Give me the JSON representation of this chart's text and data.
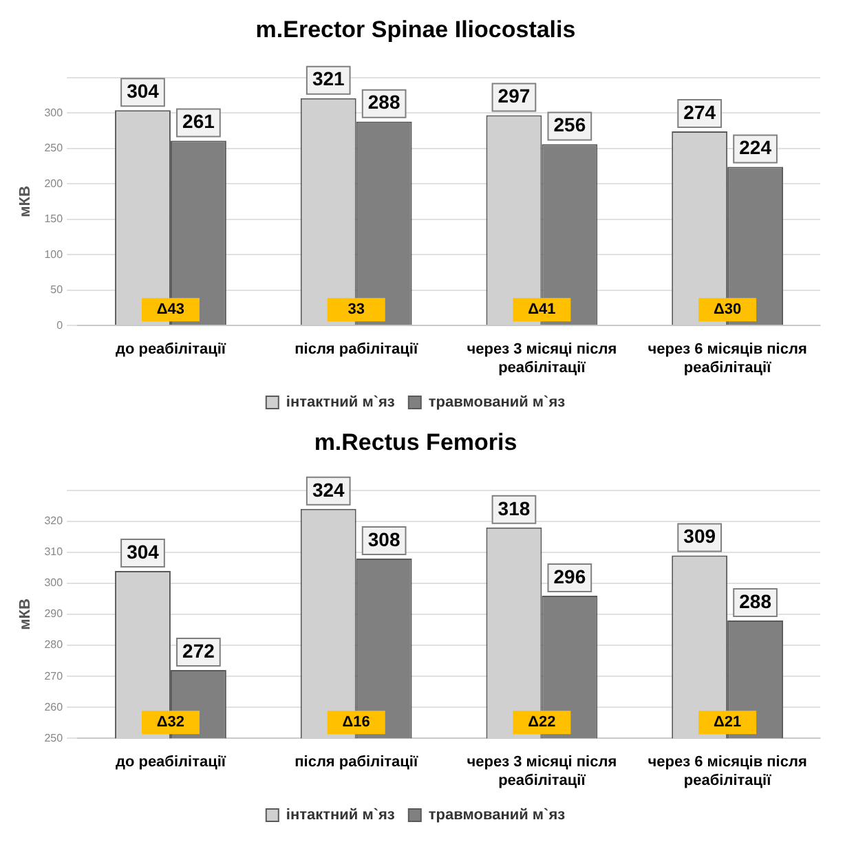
{
  "chart_data": [
    {
      "type": "bar",
      "title": "m.Erector Spinae Iliocostalis",
      "ylabel": "мКВ",
      "categories": [
        "до реабілітації",
        "після рабілітації",
        "через 3 місяці після реабілітації",
        "через 6 місяців після реабілітації"
      ],
      "series": [
        {
          "name": "інтактний м`яз",
          "color": "#d0d0d0",
          "values": [
            304,
            321,
            297,
            274
          ]
        },
        {
          "name": "травмований м`яз",
          "color": "#808080",
          "values": [
            261,
            288,
            256,
            224
          ]
        }
      ],
      "ylim": [
        0,
        350
      ],
      "yticks": [
        0,
        50,
        100,
        150,
        200,
        250,
        300,
        {
          "value": 350,
          "label": null
        }
      ],
      "grid": "y",
      "legend": "bottom",
      "data_labels": true,
      "annotations": [
        {
          "text": "Δ43",
          "x": "до реабілітації"
        },
        {
          "text": "33",
          "x": "після рабілітації"
        },
        {
          "text": "Δ41",
          "x": "через 3 місяці після реабілітації"
        },
        {
          "text": "Δ30",
          "x": "через 6 місяців після реабілітації"
        }
      ]
    },
    {
      "type": "bar",
      "title": "m.Rectus Femoris",
      "ylabel": "мКВ",
      "categories": [
        "до реабілітації",
        "після рабілітації",
        "через 3 місяці після реабілітації",
        "через 6 місяців після реабілітації"
      ],
      "series": [
        {
          "name": "інтактний м`яз",
          "color": "#d0d0d0",
          "values": [
            304,
            324,
            318,
            309
          ]
        },
        {
          "name": "травмований м`яз",
          "color": "#808080",
          "values": [
            272,
            308,
            296,
            288
          ]
        }
      ],
      "ylim": [
        250,
        330
      ],
      "yticks": [
        250,
        260,
        270,
        280,
        290,
        300,
        310,
        320,
        {
          "value": 330,
          "label": null
        }
      ],
      "grid": "y",
      "legend": "bottom",
      "data_labels": true,
      "annotations": [
        {
          "text": "Δ32",
          "x": "до реабілітації"
        },
        {
          "text": "Δ16",
          "x": "після рабілітації"
        },
        {
          "text": "Δ22",
          "x": "через 3 місяці після реабілітації"
        },
        {
          "text": "Δ21",
          "x": "через 6 місяців після реабілітації"
        }
      ]
    }
  ]
}
